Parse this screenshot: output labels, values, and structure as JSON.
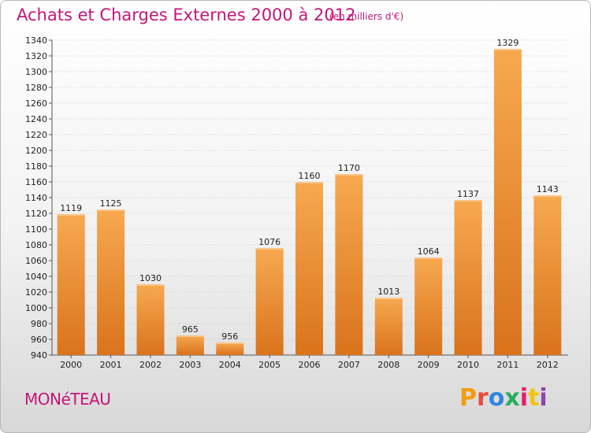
{
  "header": {
    "title": "Achats et Charges Externes 2000 à 2012",
    "subtitle": "(en milliers d'€)"
  },
  "footer": {
    "city": "MONéTEAU",
    "logo": "Proxiti",
    "logo_colors": [
      "#f39c12",
      "#e74c3c",
      "#2e86de",
      "#27ae60",
      "#e91e63",
      "#f1c40f",
      "#8e44ad"
    ]
  },
  "chart_data": {
    "type": "bar",
    "categories": [
      "2000",
      "2001",
      "2002",
      "2003",
      "2004",
      "2005",
      "2006",
      "2007",
      "2008",
      "2009",
      "2010",
      "2011",
      "2012"
    ],
    "values": [
      1119,
      1125,
      1030,
      965,
      956,
      1076,
      1160,
      1170,
      1013,
      1064,
      1137,
      1329,
      1143
    ],
    "title": "Achats et Charges Externes 2000 à 2012",
    "xlabel": "",
    "ylabel": "",
    "ylim": [
      940,
      1340
    ],
    "ytick_step": 20,
    "grid": true,
    "bar_color_top": "#f7a94f",
    "bar_color_bottom": "#d9731c"
  }
}
